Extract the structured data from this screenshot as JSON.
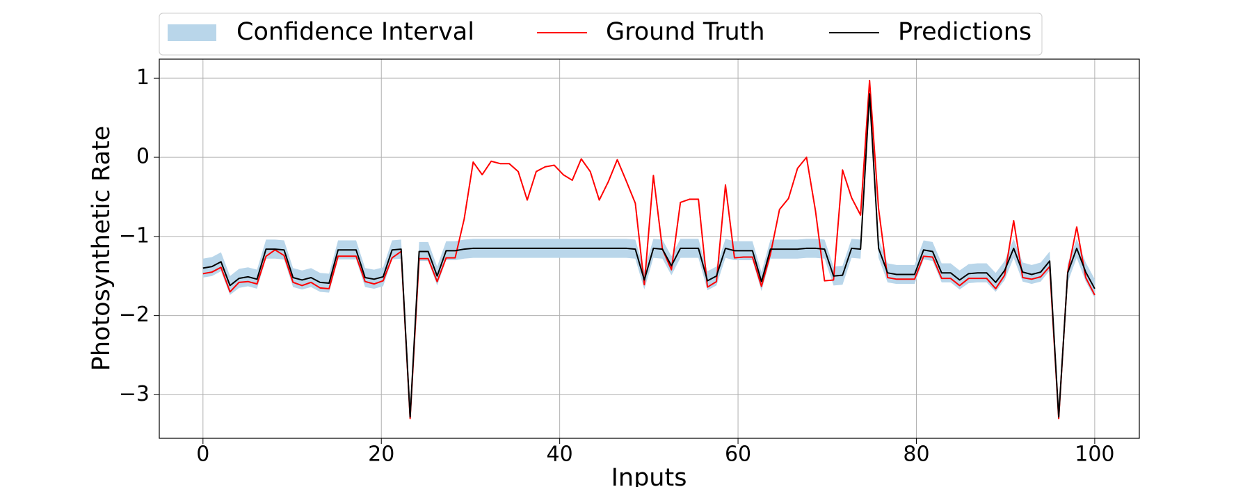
{
  "chart_data": {
    "type": "line",
    "xlabel": "Inputs",
    "ylabel": "Photosynthetic Rate",
    "x": [
      0,
      1.01,
      2.02,
      3.03,
      4.04,
      5.05,
      6.06,
      7.07,
      8.08,
      9.09,
      10.1,
      11.11,
      12.12,
      13.13,
      14.14,
      15.15,
      16.16,
      17.17,
      18.18,
      19.19,
      20.2,
      21.21,
      22.22,
      23.23,
      24.24,
      25.25,
      26.26,
      27.27,
      28.28,
      29.29,
      30.3,
      31.31,
      32.32,
      33.33,
      34.34,
      35.35,
      36.36,
      37.37,
      38.38,
      39.39,
      40.4,
      41.41,
      42.42,
      43.43,
      44.44,
      45.45,
      46.46,
      47.47,
      48.48,
      49.49,
      50.51,
      51.52,
      52.53,
      53.54,
      54.55,
      55.56,
      56.57,
      57.58,
      58.59,
      59.6,
      60.61,
      61.62,
      62.63,
      63.64,
      64.65,
      65.66,
      66.67,
      67.68,
      68.69,
      69.7,
      70.71,
      71.72,
      72.73,
      73.74,
      74.75,
      75.76,
      76.77,
      77.78,
      78.79,
      79.8,
      80.81,
      81.82,
      82.83,
      83.84,
      84.85,
      85.86,
      86.87,
      87.88,
      88.89,
      89.9,
      90.91,
      91.92,
      92.93,
      93.94,
      94.95,
      95.96,
      96.97,
      97.98,
      98.99,
      100
    ],
    "series": [
      {
        "name": "Confidence Interval",
        "color": "#b9d6ea",
        "upper": [
          -1.28,
          -1.26,
          -1.2,
          -1.5,
          -1.41,
          -1.39,
          -1.42,
          -1.04,
          -1.04,
          -1.05,
          -1.4,
          -1.43,
          -1.4,
          -1.46,
          -1.47,
          -1.05,
          -1.05,
          -1.05,
          -1.4,
          -1.42,
          -1.39,
          -1.05,
          -1.04,
          -3.26,
          -1.07,
          -1.07,
          -1.38,
          -1.06,
          -1.06,
          -1.04,
          -1.03,
          -1.03,
          -1.03,
          -1.03,
          -1.03,
          -1.03,
          -1.03,
          -1.03,
          -1.03,
          -1.03,
          -1.03,
          -1.03,
          -1.03,
          -1.03,
          -1.03,
          -1.03,
          -1.03,
          -1.03,
          -1.04,
          -1.43,
          -1.03,
          -1.04,
          -1.25,
          -1.03,
          -1.03,
          -1.03,
          -1.44,
          -1.38,
          -1.03,
          -1.06,
          -1.06,
          -1.06,
          -1.45,
          -1.04,
          -1.04,
          -1.04,
          -1.04,
          -1.03,
          -1.03,
          -1.04,
          -1.38,
          -1.37,
          -1.03,
          -1.04,
          0.85,
          -1.03,
          -1.34,
          -1.36,
          -1.36,
          -1.36,
          -1.05,
          -1.07,
          -1.34,
          -1.34,
          -1.43,
          -1.35,
          -1.34,
          -1.34,
          -1.46,
          -1.31,
          -1.03,
          -1.33,
          -1.36,
          -1.33,
          -1.19,
          -3.26,
          -1.34,
          -1.03,
          -1.33,
          -1.54
        ],
        "lower": [
          -1.52,
          -1.5,
          -1.44,
          -1.74,
          -1.65,
          -1.63,
          -1.66,
          -1.28,
          -1.28,
          -1.29,
          -1.64,
          -1.67,
          -1.64,
          -1.7,
          -1.71,
          -1.29,
          -1.29,
          -1.29,
          -1.64,
          -1.66,
          -1.63,
          -1.29,
          -1.28,
          -3.3,
          -1.31,
          -1.31,
          -1.62,
          -1.3,
          -1.3,
          -1.28,
          -1.27,
          -1.27,
          -1.27,
          -1.27,
          -1.27,
          -1.27,
          -1.27,
          -1.27,
          -1.27,
          -1.27,
          -1.27,
          -1.27,
          -1.27,
          -1.27,
          -1.27,
          -1.27,
          -1.27,
          -1.27,
          -1.28,
          -1.67,
          -1.27,
          -1.28,
          -1.49,
          -1.27,
          -1.27,
          -1.27,
          -1.68,
          -1.62,
          -1.27,
          -1.3,
          -1.3,
          -1.3,
          -1.69,
          -1.28,
          -1.28,
          -1.28,
          -1.28,
          -1.27,
          -1.27,
          -1.28,
          -1.62,
          -1.61,
          -1.27,
          -1.28,
          0.75,
          -1.27,
          -1.58,
          -1.6,
          -1.6,
          -1.6,
          -1.29,
          -1.31,
          -1.58,
          -1.58,
          -1.67,
          -1.59,
          -1.58,
          -1.58,
          -1.7,
          -1.55,
          -1.27,
          -1.57,
          -1.6,
          -1.57,
          -1.43,
          -3.3,
          -1.58,
          -1.27,
          -1.57,
          -1.78
        ]
      },
      {
        "name": "Ground Truth",
        "color": "#ff0000",
        "values": [
          -1.47,
          -1.45,
          -1.39,
          -1.7,
          -1.58,
          -1.57,
          -1.6,
          -1.25,
          -1.17,
          -1.24,
          -1.58,
          -1.62,
          -1.58,
          -1.65,
          -1.66,
          -1.25,
          -1.25,
          -1.25,
          -1.57,
          -1.6,
          -1.56,
          -1.27,
          -1.19,
          -3.3,
          -1.28,
          -1.28,
          -1.57,
          -1.27,
          -1.27,
          -0.78,
          -0.06,
          -0.22,
          -0.05,
          -0.08,
          -0.08,
          -0.18,
          -0.54,
          -0.18,
          -0.12,
          -0.1,
          -0.22,
          -0.29,
          -0.02,
          -0.18,
          -0.54,
          -0.31,
          -0.03,
          -0.3,
          -0.58,
          -1.61,
          -0.23,
          -1.16,
          -1.42,
          -0.57,
          -0.53,
          -0.53,
          -1.64,
          -1.57,
          -0.35,
          -1.27,
          -1.26,
          -1.26,
          -1.63,
          -1.22,
          -0.66,
          -0.52,
          -0.14,
          0,
          -0.68,
          -1.56,
          -1.55,
          -0.16,
          -0.51,
          -0.73,
          0.97,
          -0.65,
          -1.52,
          -1.54,
          -1.54,
          -1.54,
          -1.25,
          -1.26,
          -1.53,
          -1.53,
          -1.62,
          -1.53,
          -1.53,
          -1.53,
          -1.66,
          -1.49,
          -0.8,
          -1.52,
          -1.54,
          -1.51,
          -1.38,
          -3.3,
          -1.45,
          -0.88,
          -1.52,
          -1.74
        ]
      },
      {
        "name": "Predictions",
        "color": "#000000",
        "values": [
          -1.4,
          -1.38,
          -1.32,
          -1.62,
          -1.53,
          -1.51,
          -1.54,
          -1.16,
          -1.16,
          -1.17,
          -1.52,
          -1.55,
          -1.52,
          -1.58,
          -1.59,
          -1.17,
          -1.17,
          -1.17,
          -1.52,
          -1.54,
          -1.51,
          -1.17,
          -1.16,
          -3.28,
          -1.19,
          -1.19,
          -1.5,
          -1.18,
          -1.18,
          -1.16,
          -1.15,
          -1.15,
          -1.15,
          -1.15,
          -1.15,
          -1.15,
          -1.15,
          -1.15,
          -1.15,
          -1.15,
          -1.15,
          -1.15,
          -1.15,
          -1.15,
          -1.15,
          -1.15,
          -1.15,
          -1.15,
          -1.16,
          -1.55,
          -1.15,
          -1.16,
          -1.37,
          -1.15,
          -1.15,
          -1.15,
          -1.56,
          -1.5,
          -1.15,
          -1.18,
          -1.18,
          -1.18,
          -1.57,
          -1.16,
          -1.16,
          -1.16,
          -1.16,
          -1.15,
          -1.15,
          -1.16,
          -1.5,
          -1.49,
          -1.15,
          -1.16,
          0.8,
          -1.15,
          -1.46,
          -1.48,
          -1.48,
          -1.48,
          -1.17,
          -1.19,
          -1.46,
          -1.46,
          -1.55,
          -1.47,
          -1.46,
          -1.46,
          -1.58,
          -1.43,
          -1.15,
          -1.45,
          -1.48,
          -1.45,
          -1.31,
          -3.28,
          -1.46,
          -1.15,
          -1.45,
          -1.66
        ]
      }
    ],
    "xlim": [
      -4.9,
      105
    ],
    "ylim": [
      -3.55,
      1.24
    ],
    "xticks": [
      0,
      20,
      40,
      60,
      80,
      100
    ],
    "yticks": [
      {
        "value": -3,
        "label": "−3"
      },
      {
        "value": -2,
        "label": "−2"
      },
      {
        "value": -1,
        "label": "−1"
      },
      0,
      1
    ],
    "grid": true,
    "legend": "top"
  }
}
